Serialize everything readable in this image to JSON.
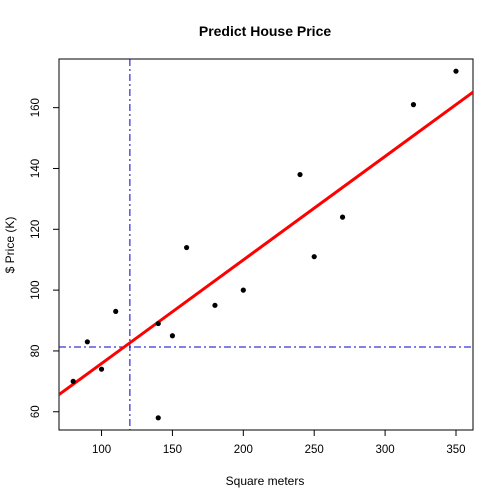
{
  "chart_data": {
    "type": "scatter",
    "title": "Predict House Price",
    "xlabel": "Square meters",
    "ylabel": "$ Price (K)",
    "xlim": [
      70,
      362
    ],
    "ylim": [
      54,
      176
    ],
    "xticks": [
      100,
      150,
      200,
      250,
      300,
      350
    ],
    "yticks": [
      60,
      80,
      100,
      120,
      140,
      160
    ],
    "grid": false,
    "points": [
      {
        "x": 80,
        "y": 70
      },
      {
        "x": 90,
        "y": 83
      },
      {
        "x": 100,
        "y": 74
      },
      {
        "x": 110,
        "y": 93
      },
      {
        "x": 140,
        "y": 89
      },
      {
        "x": 140,
        "y": 58
      },
      {
        "x": 150,
        "y": 85
      },
      {
        "x": 160,
        "y": 114
      },
      {
        "x": 180,
        "y": 95
      },
      {
        "x": 200,
        "y": 100
      },
      {
        "x": 240,
        "y": 138
      },
      {
        "x": 250,
        "y": 111
      },
      {
        "x": 270,
        "y": 124
      },
      {
        "x": 320,
        "y": 161
      },
      {
        "x": 350,
        "y": 172
      }
    ],
    "regression_line": {
      "intercept": 41.8,
      "slope": 0.3406,
      "color": "#ff0000"
    },
    "reference_lines": {
      "vertical_x": 120,
      "horizontal_y": 81.3,
      "color": "#0000cd",
      "style": "dash-dot"
    },
    "point_color": "#000000"
  }
}
